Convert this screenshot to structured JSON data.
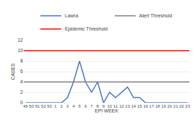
{
  "chart_data": {
    "type": "line",
    "xlabel": "EPI WEEK",
    "ylabel": "CASES",
    "categories": [
      "49",
      "50",
      "51",
      "52",
      "53",
      "1",
      "2",
      "3",
      "4",
      "5",
      "6",
      "7",
      "8",
      "9",
      "10",
      "11",
      "12",
      "13",
      "14",
      "15",
      "16",
      "17",
      "18",
      "19",
      "20",
      "21",
      "22",
      "23"
    ],
    "series": [
      {
        "name": "Lawra",
        "color": "#4472C4",
        "values": [
          0,
          0,
          0,
          0,
          0,
          0,
          0,
          1,
          4,
          8,
          4,
          2,
          4,
          0,
          2,
          1,
          2,
          3,
          1,
          1,
          0,
          0,
          0,
          0,
          0,
          0,
          0,
          0
        ]
      },
      {
        "name": "Alert Threshold",
        "type": "hline",
        "color": "#7f7f7f",
        "value": 4
      },
      {
        "name": "Epidemic Threshold",
        "type": "hline",
        "color": "#FF0000",
        "value": 10
      }
    ],
    "ylim": [
      0,
      12
    ],
    "yticks": [
      0,
      2,
      4,
      6,
      8,
      10,
      12
    ],
    "grid": true,
    "legend": "top"
  }
}
